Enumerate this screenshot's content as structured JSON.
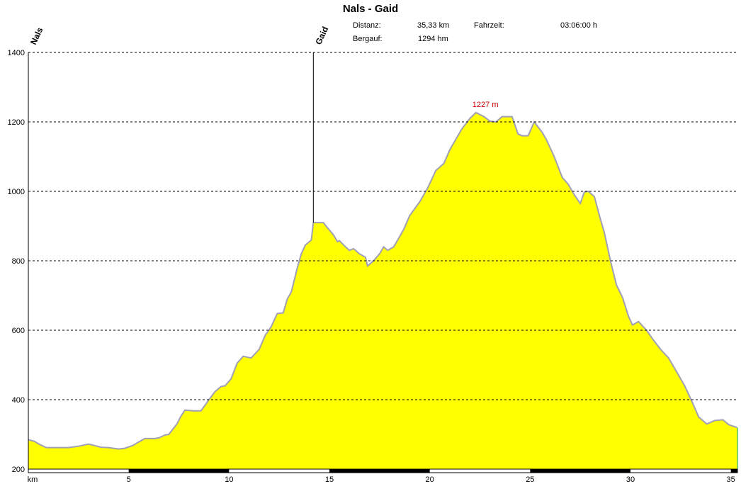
{
  "header": {
    "title": "Nals - Gaid",
    "distance_label": "Distanz:",
    "distance_value": "35,33 km",
    "time_label": "Fahrzeit:",
    "time_value": "03:06:00 h",
    "ascent_label": "Bergauf:",
    "ascent_value": "1294 hm"
  },
  "chart_data": {
    "type": "area",
    "title": "Nals - Gaid",
    "xlabel": "km",
    "ylabel": "",
    "xlim": [
      0,
      35.33
    ],
    "ylim": [
      200,
      1400
    ],
    "xticks": [
      5,
      10,
      15,
      20,
      25,
      30,
      35
    ],
    "yticks": [
      200,
      400,
      600,
      800,
      1000,
      1200,
      1400
    ],
    "grid": true,
    "fill_color": "#ffff00",
    "line_color": "#a0a0b4",
    "waypoints": [
      {
        "name": "Nals",
        "x": 0
      },
      {
        "name": "Gaid",
        "x": 14.2
      }
    ],
    "peak_label": {
      "text": "1227 m",
      "x": 22.7,
      "y": 1227,
      "color": "#cc0000"
    },
    "x": [
      0,
      0.3,
      0.6,
      0.9,
      1.5,
      2.0,
      2.5,
      3.0,
      3.3,
      3.6,
      4.0,
      4.5,
      4.8,
      5.2,
      5.5,
      5.8,
      6.3,
      6.5,
      6.8,
      7.0,
      7.4,
      7.6,
      7.8,
      8.2,
      8.6,
      9.0,
      9.3,
      9.6,
      9.8,
      10.1,
      10.4,
      10.7,
      11.1,
      11.5,
      11.8,
      12.1,
      12.4,
      12.7,
      12.9,
      13.1,
      13.4,
      13.6,
      13.8,
      14.1,
      14.2,
      14.7,
      14.9,
      15.2,
      15.4,
      15.5,
      15.8,
      16.0,
      16.2,
      16.5,
      16.8,
      16.9,
      17.2,
      17.5,
      17.7,
      17.9,
      18.2,
      18.5,
      18.7,
      19.0,
      19.5,
      19.9,
      20.3,
      20.7,
      21.0,
      21.3,
      21.6,
      22.0,
      22.3,
      22.7,
      23.0,
      23.3,
      23.6,
      23.8,
      24.1,
      24.4,
      24.6,
      24.9,
      25.2,
      25.4,
      25.6,
      25.8,
      26.2,
      26.6,
      26.9,
      27.2,
      27.5,
      27.7,
      27.9,
      28.2,
      28.5,
      28.7,
      29.0,
      29.3,
      29.6,
      29.9,
      30.1,
      30.4,
      30.8,
      31.1,
      31.5,
      31.9,
      32.3,
      32.7,
      33.1,
      33.4,
      33.8,
      34.2,
      34.6,
      34.9,
      35.3
    ],
    "y": [
      285,
      280,
      270,
      262,
      262,
      262,
      266,
      272,
      268,
      263,
      262,
      258,
      260,
      268,
      278,
      288,
      288,
      290,
      298,
      300,
      330,
      352,
      370,
      368,
      368,
      400,
      423,
      438,
      440,
      460,
      505,
      525,
      520,
      545,
      585,
      610,
      648,
      650,
      690,
      710,
      780,
      820,
      845,
      860,
      910,
      910,
      895,
      875,
      855,
      858,
      840,
      830,
      835,
      820,
      810,
      785,
      800,
      820,
      840,
      830,
      840,
      870,
      890,
      930,
      970,
      1010,
      1060,
      1080,
      1120,
      1150,
      1180,
      1210,
      1227,
      1215,
      1202,
      1200,
      1215,
      1215,
      1215,
      1165,
      1160,
      1160,
      1200,
      1185,
      1170,
      1150,
      1100,
      1040,
      1020,
      990,
      965,
      998,
      1000,
      985,
      920,
      880,
      800,
      730,
      695,
      640,
      615,
      625,
      600,
      575,
      545,
      520,
      480,
      440,
      390,
      350,
      330,
      340,
      342,
      328,
      320
    ]
  }
}
